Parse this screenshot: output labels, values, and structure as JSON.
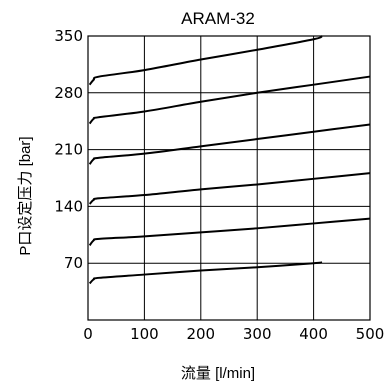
{
  "chart_data": {
    "type": "line",
    "title": "ARAM-32",
    "xlabel": "流量 [l/min]",
    "ylabel": "P口设定压力 [bar]",
    "xlim": [
      0,
      500
    ],
    "ylim": [
      0,
      350
    ],
    "xticks": [
      0,
      100,
      200,
      300,
      400,
      500
    ],
    "yticks": [
      70,
      140,
      210,
      280,
      350
    ],
    "grid": true,
    "legend": "none",
    "colors": {
      "curve": "#000000",
      "grid": "#000000",
      "background": "#ffffff"
    },
    "series": [
      {
        "x": [
          0,
          3,
          10,
          20,
          100,
          200,
          300,
          400,
          415
        ],
        "y": [
          0,
          45,
          50,
          52,
          56,
          61,
          65,
          70,
          71
        ]
      },
      {
        "x": [
          0,
          3,
          10,
          20,
          100,
          200,
          300,
          400,
          500
        ],
        "y": [
          0,
          92,
          98,
          100,
          103,
          108,
          113,
          119,
          125
        ]
      },
      {
        "x": [
          0,
          3,
          10,
          20,
          100,
          200,
          300,
          400,
          500
        ],
        "y": [
          0,
          143,
          148,
          150,
          154,
          161,
          167,
          174,
          181
        ]
      },
      {
        "x": [
          0,
          3,
          10,
          20,
          100,
          200,
          300,
          400,
          500
        ],
        "y": [
          0,
          192,
          198,
          200,
          205,
          214,
          223,
          232,
          241
        ]
      },
      {
        "x": [
          0,
          3,
          10,
          20,
          100,
          200,
          300,
          400,
          500
        ],
        "y": [
          0,
          242,
          248,
          250,
          257,
          269,
          280,
          290,
          300
        ]
      },
      {
        "x": [
          0,
          3,
          10,
          20,
          100,
          200,
          300,
          400,
          415
        ],
        "y": [
          0,
          290,
          296,
          300,
          308,
          321,
          333,
          346,
          350
        ]
      }
    ]
  }
}
